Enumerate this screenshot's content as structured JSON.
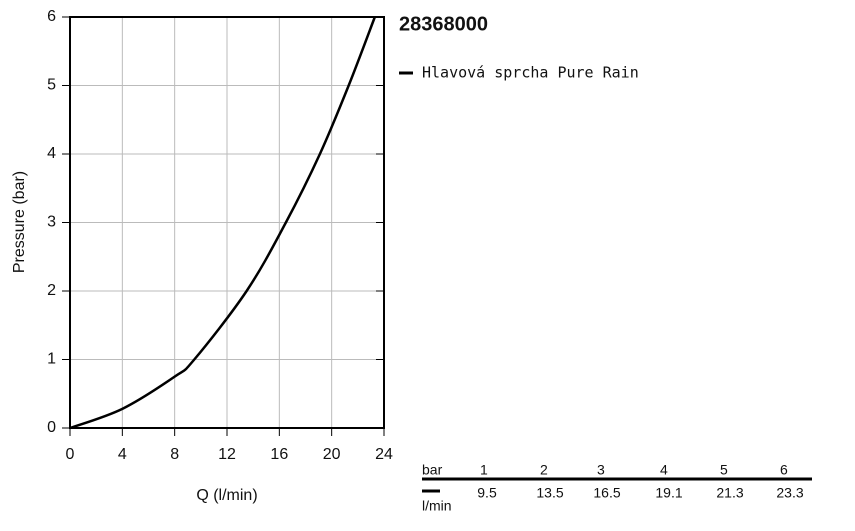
{
  "chart_data": {
    "type": "line",
    "title": "28368000",
    "x_label": "Q (l/min)",
    "y_label": "Pressure (bar)",
    "x": [
      0,
      4,
      8,
      9.5,
      13.5,
      16.5,
      19.1,
      21.3,
      23.3
    ],
    "series": [
      {
        "name": "Hlavová sprcha Pure Rain",
        "color": "#000000",
        "values": [
          0,
          0.28,
          0.75,
          1,
          2,
          3,
          4,
          5,
          6
        ]
      }
    ],
    "xlim": [
      0,
      24
    ],
    "xticks": [
      0,
      4,
      8,
      12,
      16,
      20,
      24
    ],
    "ylim": [
      0,
      6
    ],
    "yticks": [
      0,
      1,
      2,
      3,
      4,
      5,
      6
    ],
    "grid": true
  },
  "table": {
    "row_labels": [
      "bar",
      "l/min"
    ],
    "rows": [
      [
        1,
        2,
        3,
        4,
        5,
        6
      ],
      [
        9.5,
        13.5,
        16.5,
        19.1,
        21.3,
        23.3
      ]
    ]
  }
}
